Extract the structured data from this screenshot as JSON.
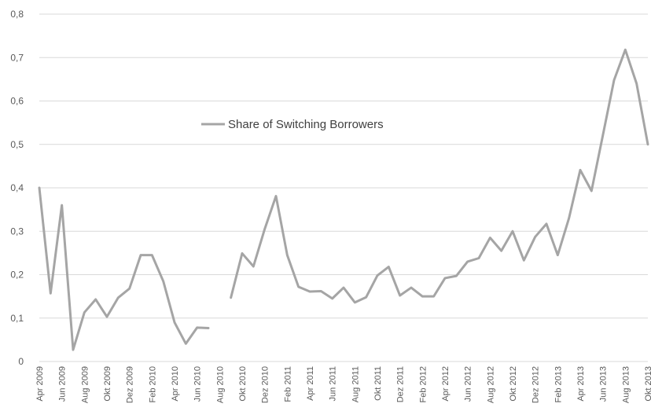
{
  "chart_data": {
    "type": "line",
    "title": "",
    "xlabel": "",
    "ylabel": "",
    "ylim": [
      0,
      0.8
    ],
    "ytick_step": 0.1,
    "decimal_separator": ",",
    "grid": "horizontal",
    "legend_position": "center-left",
    "x": [
      "Apr 2009",
      "Mai 2009",
      "Jun 2009",
      "Jul 2009",
      "Aug 2009",
      "Sep 2009",
      "Okt 2009",
      "Nov 2009",
      "Dez 2009",
      "Jan 2010",
      "Feb 2010",
      "Mrz 2010",
      "Apr 2010",
      "Mai 2010",
      "Jun 2010",
      "Jul 2010",
      "Aug 2010",
      "Sep 2010",
      "Okt 2010",
      "Nov 2010",
      "Dez 2010",
      "Jan 2011",
      "Feb 2011",
      "Mrz 2011",
      "Apr 2011",
      "Mai 2011",
      "Jun 2011",
      "Jul 2011",
      "Aug 2011",
      "Sep 2011",
      "Okt 2011",
      "Nov 2011",
      "Dez 2011",
      "Jan 2012",
      "Feb 2012",
      "Mrz 2012",
      "Apr 2012",
      "Mai 2012",
      "Jun 2012",
      "Jul 2012",
      "Aug 2012",
      "Sep 2012",
      "Okt 2012",
      "Nov 2012",
      "Dez 2012",
      "Jan 2013",
      "Feb 2013",
      "Mrz 2013",
      "Apr 2013",
      "Mai 2013",
      "Jun 2013",
      "Jul 2013",
      "Aug 2013",
      "Sep 2013",
      "Okt 2013"
    ],
    "x_tick_labels": [
      "Apr 2009",
      "Jun 2009",
      "Aug 2009",
      "Okt 2009",
      "Dez 2009",
      "Feb 2010",
      "Apr 2010",
      "Jun 2010",
      "Aug 2010",
      "Okt 2010",
      "Dez 2010",
      "Feb 2011",
      "Apr 2011",
      "Jun 2011",
      "Aug 2011",
      "Okt 2011",
      "Dez 2011",
      "Feb 2012",
      "Apr 2012",
      "Jun 2012",
      "Aug 2012",
      "Okt 2012",
      "Dez 2012",
      "Feb 2013",
      "Apr 2013",
      "Jun 2013",
      "Aug 2013",
      "Okt 2013"
    ],
    "series": [
      {
        "name": "Share of Switching Borrowers",
        "color": "#a5a5a5",
        "values": [
          0.4,
          0.157,
          0.36,
          0.027,
          0.113,
          0.143,
          0.103,
          0.147,
          0.168,
          0.245,
          0.245,
          0.185,
          0.09,
          0.041,
          0.078,
          0.077,
          null,
          0.147,
          0.249,
          0.219,
          0.305,
          0.381,
          0.245,
          0.172,
          0.161,
          0.162,
          0.145,
          0.17,
          0.136,
          0.148,
          0.198,
          0.218,
          0.152,
          0.17,
          0.15,
          0.15,
          0.192,
          0.197,
          0.23,
          0.238,
          0.285,
          0.255,
          0.3,
          0.233,
          0.287,
          0.317,
          0.245,
          0.33,
          0.441,
          0.393,
          0.52,
          0.648,
          0.718,
          0.64,
          0.5
        ]
      }
    ]
  }
}
